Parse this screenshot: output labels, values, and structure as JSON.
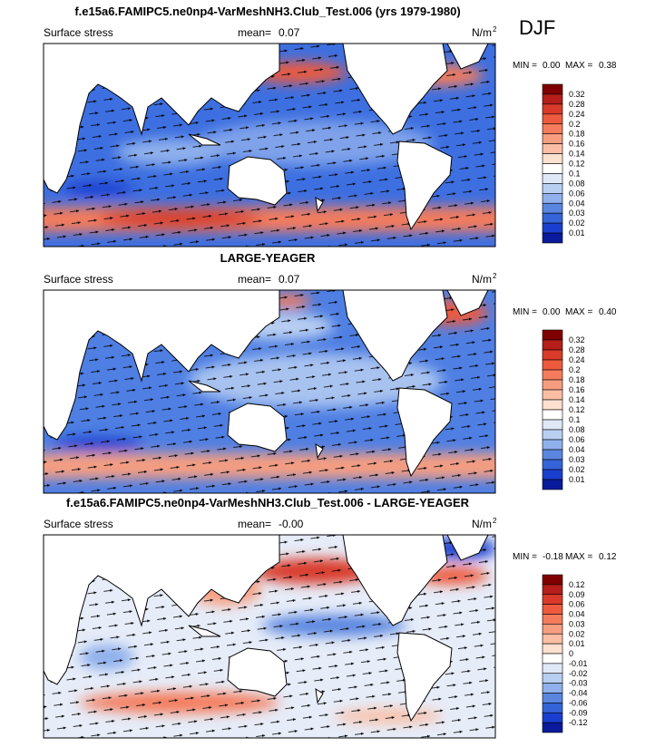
{
  "title": "f.e15a6.FAMIPC5.ne0np4-VarMeshNH3.Club_Test.006 (yrs 1979-1980)",
  "season": "DJF",
  "panels": [
    {
      "title": null,
      "field": "Surface stress",
      "mean_label": "mean=",
      "mean": "0.07",
      "units": "N/m",
      "units_exp": "2",
      "min_label": "MIN =",
      "min": "0.00",
      "max_label": "MAX =",
      "max": "0.38",
      "colorbar": {
        "labels": [
          0.32,
          0.28,
          0.24,
          0.2,
          0.18,
          0.16,
          0.14,
          0.12,
          0.1,
          0.08,
          0.06,
          0.04,
          0.03,
          0.02,
          0.01
        ],
        "colors": [
          "#7f0000",
          "#b51e1a",
          "#d93a2a",
          "#ee5a3e",
          "#f47c5c",
          "#f79e80",
          "#fbbea4",
          "#fde0d0",
          "#ffffff",
          "#dfe8f7",
          "#b9cff2",
          "#8fb0ec",
          "#5a86e0",
          "#3563d8",
          "#1a3fd0",
          "#0a1a9c"
        ]
      }
    },
    {
      "title": "LARGE-YEAGER",
      "field": "Surface stress",
      "mean_label": "mean=",
      "mean": "0.07",
      "units": "N/m",
      "units_exp": "2",
      "min_label": "MIN =",
      "min": "0.00",
      "max_label": "MAX =",
      "max": "0.40",
      "colorbar": {
        "labels": [
          0.32,
          0.28,
          0.24,
          0.2,
          0.18,
          0.16,
          0.14,
          0.12,
          0.1,
          0.08,
          0.06,
          0.04,
          0.03,
          0.02,
          0.01
        ],
        "colors": [
          "#7f0000",
          "#b51e1a",
          "#d93a2a",
          "#ee5a3e",
          "#f47c5c",
          "#f79e80",
          "#fbbea4",
          "#fde0d0",
          "#ffffff",
          "#dfe8f7",
          "#b9cff2",
          "#8fb0ec",
          "#5a86e0",
          "#3563d8",
          "#1a3fd0",
          "#0a1a9c"
        ]
      }
    },
    {
      "title": "f.e15a6.FAMIPC5.ne0np4-VarMeshNH3.Club_Test.006 - LARGE-YEAGER",
      "field": "Surface stress",
      "mean_label": "mean=",
      "mean": "-0.00",
      "units": "N/m",
      "units_exp": "2",
      "min_label": "MIN =",
      "min": "-0.18",
      "max_label": "MAX =",
      "max": "0.12",
      "colorbar": {
        "labels": [
          0.12,
          0.09,
          0.06,
          0.04,
          0.03,
          0.02,
          0.01,
          0,
          -0.01,
          -0.02,
          -0.03,
          -0.04,
          -0.06,
          -0.09,
          -0.12
        ],
        "colors": [
          "#7f0000",
          "#b51e1a",
          "#d93a2a",
          "#ee5a3e",
          "#f47c5c",
          "#f79e80",
          "#fbbea4",
          "#fde0d0",
          "#ffffff",
          "#dfe8f7",
          "#b9cff2",
          "#8fb0ec",
          "#5a86e0",
          "#3563d8",
          "#1a3fd0",
          "#0a1a9c"
        ]
      }
    }
  ]
}
